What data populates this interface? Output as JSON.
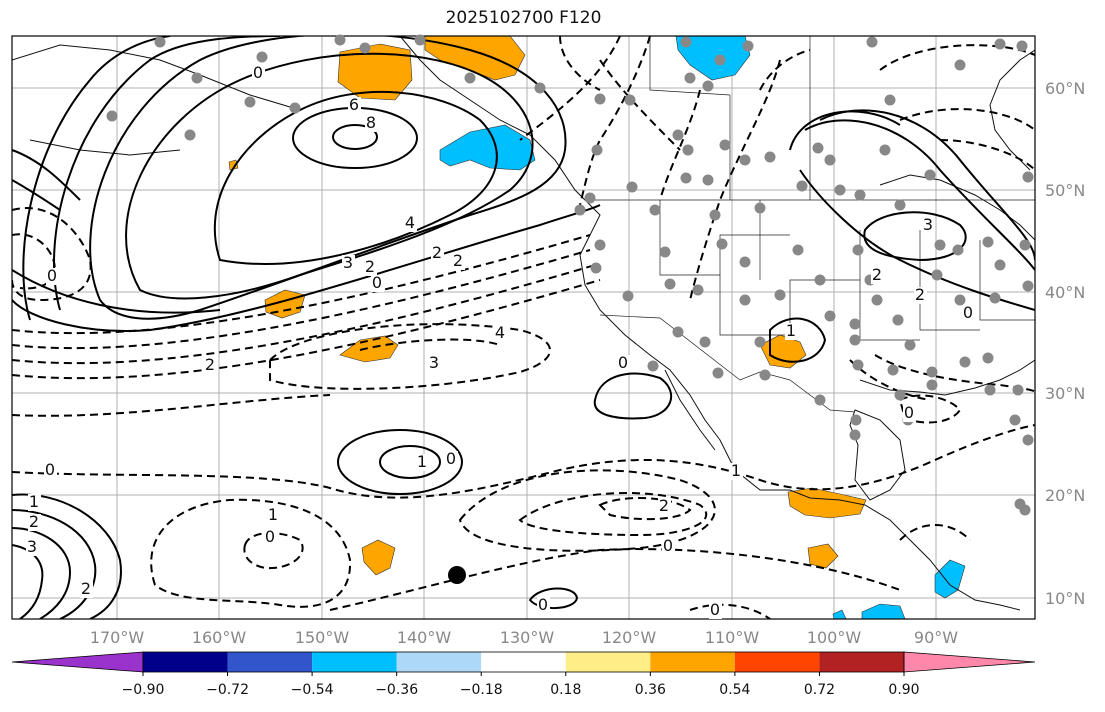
{
  "title": "2025102700 F120",
  "map": {
    "lon_labels": [
      "170°W",
      "160°W",
      "150°W",
      "140°W",
      "130°W",
      "120°W",
      "110°W",
      "100°W",
      "90°W"
    ],
    "lat_labels": [
      "60°N",
      "50°N",
      "40°N",
      "30°N",
      "20°N",
      "10°N"
    ],
    "contour_labels": [
      "0",
      "6",
      "8",
      "4",
      "3",
      "2",
      "0",
      "2",
      "2",
      "4",
      "3",
      "0",
      "1",
      "0",
      "0",
      "1",
      "2",
      "3",
      "2",
      "2",
      "1",
      "0",
      "0",
      "2",
      "0",
      "1",
      "1",
      "0",
      "3",
      "2",
      "0",
      "2",
      "0",
      "0"
    ]
  },
  "colorbar": {
    "colors": [
      "#9933cc",
      "#00008b",
      "#3355cc",
      "#00bfff",
      "#add8f7",
      "#ffffff",
      "#ffee88",
      "#ffa500",
      "#ff4500",
      "#b22222",
      "#ff88aa"
    ],
    "tick_labels": [
      "−0.90",
      "−0.72",
      "−0.54",
      "−0.36",
      "−0.18",
      "0.18",
      "0.36",
      "0.54",
      "0.72",
      "0.90"
    ]
  }
}
